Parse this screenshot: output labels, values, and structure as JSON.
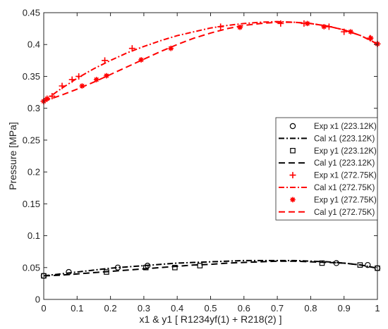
{
  "chart_data": {
    "type": "scatter",
    "title": "",
    "xlabel": "x1 & y1 [ R1234yf(1) + R218(2) ]",
    "ylabel": "Pressure [MPa]",
    "xlim": [
      0,
      1
    ],
    "ylim": [
      0,
      0.45
    ],
    "xticks": [
      "0",
      "0.1",
      "0.2",
      "0.3",
      "0.4",
      "0.5",
      "0.6",
      "0.7",
      "0.8",
      "0.9",
      "1"
    ],
    "yticks": [
      "0",
      "0.05",
      "0.1",
      "0.15",
      "0.2",
      "0.25",
      "0.3",
      "0.35",
      "0.4",
      "0.45"
    ],
    "grid": false,
    "legend_position": "right-middle",
    "series": [
      {
        "name": "Exp x1 (223.12K)",
        "kind": "marker",
        "marker": "circle",
        "color": "#000000",
        "x": [
          0,
          0.075,
          0.222,
          0.311,
          0.877,
          0.971,
          1.0
        ],
        "y": [
          0.037,
          0.043,
          0.05,
          0.053,
          0.057,
          0.054,
          0.049
        ]
      },
      {
        "name": "Cal x1 (223.12K)",
        "kind": "line",
        "dash": "dashdot",
        "color": "#000000",
        "x": [
          0,
          0.05,
          0.1,
          0.15,
          0.2,
          0.25,
          0.3,
          0.35,
          0.4,
          0.45,
          0.5,
          0.55,
          0.6,
          0.65,
          0.7,
          0.75,
          0.8,
          0.85,
          0.9,
          0.95,
          1.0
        ],
        "y": [
          0.037,
          0.04,
          0.043,
          0.046,
          0.049,
          0.051,
          0.053,
          0.055,
          0.057,
          0.058,
          0.059,
          0.06,
          0.061,
          0.061,
          0.061,
          0.061,
          0.06,
          0.059,
          0.057,
          0.054,
          0.049
        ]
      },
      {
        "name": "Exp y1 (223.12K)",
        "kind": "marker",
        "marker": "square",
        "color": "#000000",
        "x": [
          0,
          0.188,
          0.306,
          0.393,
          0.468,
          0.834,
          0.948,
          1.0
        ],
        "y": [
          0.037,
          0.043,
          0.05,
          0.05,
          0.053,
          0.057,
          0.054,
          0.049
        ]
      },
      {
        "name": "Cal y1 (223.12K)",
        "kind": "line",
        "dash": "dash",
        "color": "#000000",
        "x": [
          0,
          0.05,
          0.1,
          0.15,
          0.2,
          0.25,
          0.3,
          0.35,
          0.4,
          0.45,
          0.5,
          0.55,
          0.6,
          0.65,
          0.7,
          0.75,
          0.8,
          0.85,
          0.9,
          0.95,
          1.0
        ],
        "y": [
          0.037,
          0.038,
          0.04,
          0.042,
          0.044,
          0.046,
          0.048,
          0.05,
          0.052,
          0.054,
          0.055,
          0.057,
          0.058,
          0.059,
          0.06,
          0.06,
          0.059,
          0.058,
          0.057,
          0.054,
          0.049
        ]
      },
      {
        "name": "Exp x1 (272.75K)",
        "kind": "marker",
        "marker": "plus",
        "color": "#ff0000",
        "x": [
          0,
          0.01,
          0.025,
          0.055,
          0.085,
          0.105,
          0.183,
          0.265,
          0.53,
          0.71,
          0.78,
          0.855,
          0.9,
          0.978,
          1.0
        ],
        "y": [
          0.311,
          0.315,
          0.319,
          0.335,
          0.345,
          0.35,
          0.375,
          0.394,
          0.428,
          0.433,
          0.433,
          0.428,
          0.42,
          0.41,
          0.401
        ]
      },
      {
        "name": "Cal x1 (272.75K)",
        "kind": "line",
        "dash": "dashdot",
        "color": "#ff0000",
        "x": [
          0,
          0.05,
          0.1,
          0.15,
          0.2,
          0.25,
          0.3,
          0.35,
          0.4,
          0.45,
          0.5,
          0.55,
          0.6,
          0.65,
          0.7,
          0.75,
          0.8,
          0.85,
          0.9,
          0.95,
          1.0
        ],
        "y": [
          0.311,
          0.33,
          0.347,
          0.362,
          0.375,
          0.387,
          0.397,
          0.406,
          0.414,
          0.42,
          0.426,
          0.43,
          0.433,
          0.435,
          0.436,
          0.435,
          0.433,
          0.429,
          0.423,
          0.414,
          0.401
        ]
      },
      {
        "name": "Exp y1 (272.75K)",
        "kind": "marker",
        "marker": "asterisk",
        "color": "#ff0000",
        "x": [
          0,
          0.01,
          0.115,
          0.158,
          0.188,
          0.292,
          0.381,
          0.588,
          0.79,
          0.84,
          0.92,
          0.98,
          1.0
        ],
        "y": [
          0.311,
          0.315,
          0.335,
          0.345,
          0.351,
          0.376,
          0.394,
          0.427,
          0.433,
          0.428,
          0.42,
          0.41,
          0.401
        ]
      },
      {
        "name": "Cal y1 (272.75K)",
        "kind": "line",
        "dash": "dash",
        "color": "#ff0000",
        "x": [
          0,
          0.05,
          0.1,
          0.15,
          0.2,
          0.25,
          0.3,
          0.35,
          0.4,
          0.45,
          0.5,
          0.55,
          0.6,
          0.65,
          0.7,
          0.75,
          0.8,
          0.85,
          0.9,
          0.95,
          1.0
        ],
        "y": [
          0.311,
          0.32,
          0.33,
          0.341,
          0.353,
          0.365,
          0.377,
          0.389,
          0.4,
          0.41,
          0.418,
          0.425,
          0.43,
          0.433,
          0.435,
          0.435,
          0.433,
          0.429,
          0.423,
          0.414,
          0.401
        ]
      }
    ]
  }
}
